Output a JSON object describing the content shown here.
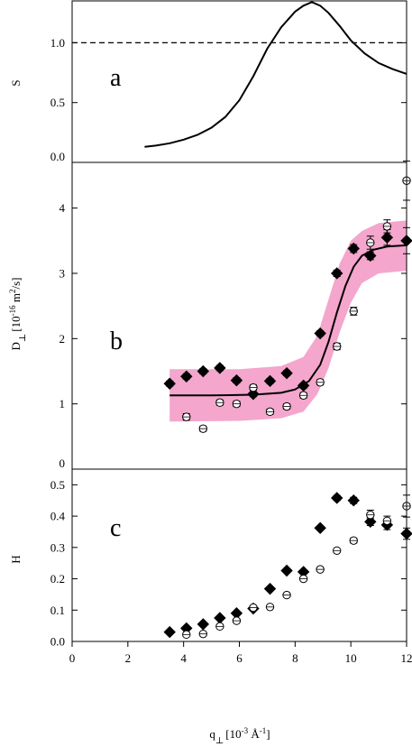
{
  "chart_data": [
    {
      "panel": "a",
      "type": "line",
      "panel_letter": "a",
      "ylabel": "S",
      "xlim": [
        0,
        12
      ],
      "ylim": [
        0,
        1.35
      ],
      "yticks": [
        0.0,
        0.5,
        1.0
      ],
      "ytick_labels": [
        "0.0",
        "0.5",
        "1.0"
      ],
      "reference_line": {
        "y": 1.0,
        "style": "dashed"
      },
      "series": [
        {
          "style": "solid-line",
          "x": [
            2.6,
            3.0,
            3.5,
            4.0,
            4.5,
            5.0,
            5.5,
            6.0,
            6.5,
            7.0,
            7.5,
            8.0,
            8.3,
            8.6,
            8.9,
            9.2,
            9.6,
            10.0,
            10.5,
            11.0,
            11.5,
            12.0
          ],
          "y": [
            0.13,
            0.14,
            0.16,
            0.19,
            0.23,
            0.29,
            0.38,
            0.52,
            0.72,
            0.95,
            1.13,
            1.26,
            1.31,
            1.34,
            1.31,
            1.25,
            1.14,
            1.02,
            0.91,
            0.83,
            0.78,
            0.74
          ]
        }
      ]
    },
    {
      "panel": "b",
      "type": "scatter",
      "panel_letter": "b",
      "ylabel_main": "D",
      "ylabel_sub": "⊥",
      "ylabel_units_1": "[10",
      "ylabel_exp_1": "-16",
      "ylabel_units_2": " m",
      "ylabel_exp_2": "2",
      "ylabel_units_3": "/s]",
      "xlim": [
        0,
        12
      ],
      "ylim": [
        0,
        4.7
      ],
      "yticks": [
        0,
        1,
        2,
        3,
        4
      ],
      "ytick_labels": [
        "0",
        "1",
        "2",
        "3",
        "4"
      ],
      "band": {
        "color": "#f4a6cc",
        "x": [
          3.5,
          6.0,
          7.5,
          8.3,
          8.8,
          9.2,
          9.6,
          10.0,
          10.4,
          11.0,
          12.0
        ],
        "upper": [
          1.53,
          1.53,
          1.58,
          1.72,
          2.05,
          2.6,
          3.15,
          3.5,
          3.65,
          3.77,
          3.81
        ],
        "lower": [
          0.73,
          0.74,
          0.78,
          0.88,
          1.15,
          1.55,
          2.1,
          2.55,
          2.85,
          3.0,
          3.04
        ]
      },
      "fit": {
        "x": [
          3.5,
          5.0,
          6.5,
          7.5,
          8.0,
          8.5,
          8.9,
          9.2,
          9.5,
          9.8,
          10.1,
          10.4,
          10.8,
          11.3,
          12.0
        ],
        "y": [
          1.13,
          1.13,
          1.14,
          1.17,
          1.22,
          1.35,
          1.6,
          1.95,
          2.4,
          2.8,
          3.1,
          3.27,
          3.36,
          3.41,
          3.43
        ]
      },
      "series": [
        {
          "marker": "filled-diamond",
          "x": [
            3.5,
            4.1,
            4.7,
            5.3,
            5.9,
            6.5,
            7.1,
            7.7,
            8.3,
            8.9,
            9.5,
            10.1,
            10.7,
            11.3,
            12.0
          ],
          "y": [
            1.31,
            1.42,
            1.5,
            1.55,
            1.36,
            1.15,
            1.35,
            1.47,
            1.28,
            2.08,
            3.0,
            3.38,
            3.27,
            3.55,
            3.5
          ],
          "err": [
            0.04,
            0.04,
            0.04,
            0.04,
            0.04,
            0.04,
            0.04,
            0.04,
            0.04,
            0.04,
            0.05,
            0.06,
            0.06,
            0.12,
            0.2
          ]
        },
        {
          "marker": "open-circle",
          "x": [
            4.1,
            4.7,
            5.3,
            5.9,
            6.5,
            7.1,
            7.7,
            8.3,
            8.9,
            9.5,
            10.1,
            10.7,
            11.3,
            12.0
          ],
          "y": [
            0.8,
            0.62,
            1.02,
            1.0,
            1.25,
            0.88,
            0.96,
            1.13,
            1.33,
            1.88,
            2.42,
            3.47,
            3.72,
            4.42
          ],
          "err": [
            0.05,
            0.04,
            0.04,
            0.04,
            0.04,
            0.04,
            0.04,
            0.04,
            0.04,
            0.05,
            0.06,
            0.1,
            0.1,
            0.3
          ]
        }
      ]
    },
    {
      "panel": "c",
      "type": "scatter",
      "panel_letter": "c",
      "ylabel": "H",
      "xlabel_main": "q",
      "xlabel_sub": "⊥",
      "xlabel_units_1": "[10",
      "xlabel_exp_1": "-3",
      "xlabel_units_2": " Å",
      "xlabel_exp_2": "-1",
      "xlabel_units_3": "]",
      "xlim": [
        0,
        12
      ],
      "ylim": [
        0,
        0.55
      ],
      "xticks": [
        0,
        2,
        4,
        6,
        8,
        10,
        12
      ],
      "xtick_labels": [
        "0",
        "2",
        "4",
        "6",
        "8",
        "10",
        "12"
      ],
      "yticks": [
        0.0,
        0.1,
        0.2,
        0.3,
        0.4,
        0.5
      ],
      "ytick_labels": [
        "0.0",
        "0.1",
        "0.2",
        "0.3",
        "0.4",
        "0.5"
      ],
      "series": [
        {
          "marker": "filled-diamond",
          "x": [
            3.5,
            4.1,
            4.7,
            5.3,
            5.9,
            6.5,
            7.1,
            7.7,
            8.3,
            8.9,
            9.5,
            10.1,
            10.7,
            11.3,
            12.0
          ],
          "y": [
            0.03,
            0.042,
            0.055,
            0.075,
            0.09,
            0.105,
            0.168,
            0.226,
            0.222,
            0.362,
            0.458,
            0.45,
            0.382,
            0.372,
            0.344
          ],
          "err": [
            0.003,
            0.003,
            0.003,
            0.003,
            0.003,
            0.003,
            0.004,
            0.004,
            0.004,
            0.005,
            0.008,
            0.01,
            0.012,
            0.015,
            0.018
          ]
        },
        {
          "marker": "open-circle",
          "x": [
            4.1,
            4.7,
            5.3,
            5.9,
            6.5,
            7.1,
            7.7,
            8.3,
            8.9,
            9.5,
            10.1,
            10.7,
            11.3,
            12.0
          ],
          "y": [
            0.022,
            0.024,
            0.048,
            0.066,
            0.108,
            0.11,
            0.148,
            0.2,
            0.23,
            0.29,
            0.322,
            0.404,
            0.385,
            0.432
          ],
          "err": [
            0.003,
            0.003,
            0.003,
            0.003,
            0.003,
            0.003,
            0.004,
            0.004,
            0.005,
            0.006,
            0.008,
            0.015,
            0.015,
            0.035
          ]
        }
      ]
    }
  ]
}
